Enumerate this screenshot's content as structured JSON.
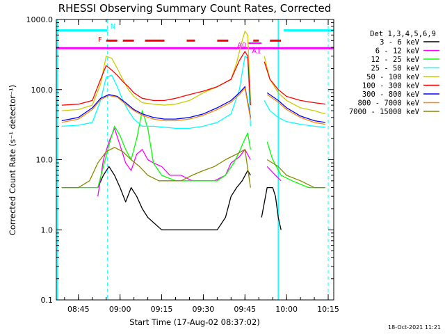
{
  "chart_data": {
    "type": "line",
    "title": "RHESSI Observing Summary Count Rates, Corrected",
    "xlabel": "Start Time (17-Aug-02 08:37:02)",
    "ylabel": "Corrected Count Rate (s⁻¹ detector⁻¹)",
    "ylog": true,
    "xlim": [
      "08:37:02",
      "10:17:00"
    ],
    "ylim": [
      0.1,
      1000.0
    ],
    "x_ticks": [
      "08:45",
      "09:00",
      "09:15",
      "09:30",
      "09:45",
      "10:00",
      "10:15"
    ],
    "y_ticks": [
      "0.1",
      "1.0",
      "10.0",
      "100.0",
      "1000.0"
    ],
    "legend_title": "Det 1,3,4,5,6,9",
    "legend_placement": "right",
    "timestamp": "18-Oct-2021 11:21",
    "series": [
      {
        "name": "3 - 6 keV",
        "color": "#000000",
        "x": [
          "08:52",
          "08:54",
          "08:56",
          "08:58",
          "09:00",
          "09:02",
          "09:04",
          "09:06",
          "09:08",
          "09:10",
          "09:15",
          "09:20",
          "09:25",
          "09:30",
          "09:35",
          "09:38",
          "09:40",
          "09:42",
          "09:44",
          "09:46",
          "09:47",
          "09:50",
          "09:51",
          "09:53",
          "09:55",
          "09:56",
          "09:57",
          "09:58"
        ],
        "y": [
          4,
          6,
          8,
          6,
          4,
          2.5,
          4,
          3,
          2,
          1.5,
          1,
          1,
          1,
          1,
          1,
          1.5,
          3,
          4,
          5,
          7,
          6,
          null,
          1.5,
          4,
          4,
          3,
          1.5,
          1
        ]
      },
      {
        "name": "6 - 12 keV",
        "color": "#ff00ff",
        "x": [
          "08:52",
          "08:54",
          "08:56",
          "08:58",
          "09:00",
          "09:02",
          "09:04",
          "09:06",
          "09:08",
          "09:10",
          "09:12",
          "09:15",
          "09:18",
          "09:22",
          "09:26",
          "09:30",
          "09:34",
          "09:38",
          "09:40",
          "09:43",
          "09:45",
          "09:47",
          "09:51",
          "09:53",
          "09:56",
          "09:58"
        ],
        "y": [
          3,
          10,
          18,
          28,
          16,
          9,
          7,
          12,
          14,
          10,
          9,
          8,
          6,
          6,
          5,
          5,
          5,
          6,
          9,
          11,
          14,
          10,
          null,
          8,
          6,
          5
        ]
      },
      {
        "name": "12 - 25 keV",
        "color": "#00ff00",
        "x": [
          "08:39",
          "08:44",
          "08:49",
          "08:52",
          "08:54",
          "08:56",
          "08:58",
          "09:00",
          "09:02",
          "09:04",
          "09:06",
          "09:08",
          "09:10",
          "09:12",
          "09:15",
          "09:20",
          "09:25",
          "09:30",
          "09:35",
          "09:38",
          "09:41",
          "09:43",
          "09:45",
          "09:46",
          "09:47",
          "09:51",
          "09:53",
          "09:55",
          "09:58",
          "10:02",
          "10:08",
          "10:14"
        ],
        "y": [
          4,
          4,
          4,
          4,
          8,
          16,
          30,
          22,
          14,
          10,
          20,
          50,
          28,
          9,
          6,
          5,
          5,
          5,
          5,
          6,
          9,
          13,
          20,
          24,
          14,
          null,
          18,
          10,
          6,
          5,
          4,
          4
        ]
      },
      {
        "name": "25 - 50 keV",
        "color": "#00ffff",
        "x": [
          "08:39",
          "08:45",
          "08:50",
          "08:53",
          "08:55",
          "08:57",
          "08:59",
          "09:01",
          "09:03",
          "09:05",
          "09:08",
          "09:12",
          "09:16",
          "09:20",
          "09:25",
          "09:30",
          "09:35",
          "09:40",
          "09:43",
          "09:45",
          "09:46",
          "09:47",
          "09:51",
          "09:52",
          "09:54",
          "09:57",
          "10:00",
          "10:05",
          "10:10",
          "10:14"
        ],
        "y": [
          30,
          31,
          34,
          70,
          150,
          160,
          110,
          70,
          50,
          38,
          30,
          30,
          29,
          28,
          28,
          30,
          34,
          45,
          100,
          300,
          280,
          30,
          null,
          70,
          50,
          40,
          35,
          32,
          30,
          29
        ]
      },
      {
        "name": "50 - 100 keV",
        "color": "#cccc00",
        "x": [
          "08:39",
          "08:45",
          "08:50",
          "08:53",
          "08:55",
          "08:57",
          "08:59",
          "09:01",
          "09:03",
          "09:05",
          "09:08",
          "09:12",
          "09:16",
          "09:20",
          "09:25",
          "09:30",
          "09:35",
          "09:40",
          "09:42",
          "09:44",
          "09:45",
          "09:46",
          "09:47",
          "09:51",
          "09:52",
          "09:54",
          "09:57",
          "10:00",
          "10:05",
          "10:10",
          "10:14"
        ],
        "y": [
          50,
          52,
          60,
          120,
          300,
          280,
          200,
          140,
          100,
          80,
          65,
          62,
          60,
          62,
          70,
          90,
          110,
          140,
          240,
          500,
          680,
          600,
          70,
          null,
          300,
          140,
          90,
          70,
          55,
          50,
          45
        ]
      },
      {
        "name": "100 - 300 keV",
        "color": "#ff0000",
        "x": [
          "08:39",
          "08:45",
          "08:50",
          "08:53",
          "08:55",
          "08:57",
          "08:59",
          "09:01",
          "09:03",
          "09:05",
          "09:08",
          "09:12",
          "09:16",
          "09:20",
          "09:25",
          "09:30",
          "09:35",
          "09:40",
          "09:43",
          "09:45",
          "09:46",
          "09:47",
          "09:51",
          "09:52",
          "09:54",
          "09:57",
          "10:00",
          "10:05",
          "10:10",
          "10:14"
        ],
        "y": [
          60,
          62,
          70,
          140,
          220,
          190,
          160,
          130,
          110,
          90,
          75,
          70,
          70,
          75,
          85,
          95,
          110,
          140,
          260,
          350,
          300,
          60,
          null,
          250,
          140,
          100,
          80,
          70,
          65,
          62
        ]
      },
      {
        "name": "300 - 800 keV",
        "color": "#0000ff",
        "x": [
          "08:39",
          "08:45",
          "08:50",
          "08:53",
          "08:56",
          "08:59",
          "09:02",
          "09:05",
          "09:08",
          "09:12",
          "09:16",
          "09:20",
          "09:25",
          "09:30",
          "09:35",
          "09:40",
          "09:43",
          "09:45",
          "09:47",
          "09:51",
          "09:53",
          "09:57",
          "10:00",
          "10:05",
          "10:10",
          "10:14"
        ],
        "y": [
          36,
          40,
          55,
          75,
          85,
          80,
          65,
          52,
          45,
          40,
          38,
          38,
          40,
          45,
          55,
          70,
          90,
          110,
          40,
          null,
          90,
          70,
          55,
          42,
          36,
          34
        ]
      },
      {
        "name": "800 - 7000 keV",
        "color": "#ff8800",
        "x": [
          "08:39",
          "08:45",
          "08:50",
          "08:53",
          "08:56",
          "08:59",
          "09:02",
          "09:05",
          "09:08",
          "09:12",
          "09:16",
          "09:20",
          "09:25",
          "09:30",
          "09:35",
          "09:40",
          "09:43",
          "09:45",
          "09:47",
          "09:51",
          "09:53",
          "09:57",
          "10:00",
          "10:05",
          "10:10",
          "10:14"
        ],
        "y": [
          34,
          38,
          52,
          72,
          82,
          78,
          62,
          50,
          43,
          38,
          36,
          36,
          38,
          43,
          52,
          66,
          85,
          105,
          38,
          null,
          85,
          66,
          52,
          40,
          34,
          32
        ]
      },
      {
        "name": "7000 - 15000 keV",
        "color": "#888800",
        "x": [
          "08:39",
          "08:45",
          "08:49",
          "08:52",
          "08:55",
          "08:58",
          "09:01",
          "09:04",
          "09:07",
          "09:10",
          "09:14",
          "09:18",
          "09:22",
          "09:26",
          "09:30",
          "09:34",
          "09:38",
          "09:42",
          "09:45",
          "09:47",
          "09:51",
          "09:53",
          "09:57",
          "10:00",
          "10:05",
          "10:10",
          "10:14"
        ],
        "y": [
          4,
          4,
          5,
          9,
          13,
          15,
          13,
          10,
          8,
          6,
          5,
          5,
          5,
          6,
          7,
          8,
          10,
          12,
          14,
          4,
          null,
          10,
          8,
          6,
          5,
          4,
          4
        ]
      }
    ],
    "annotations": [
      {
        "label": "N",
        "color": "#00ffff"
      },
      {
        "label": "F",
        "color": "#ff0000"
      },
      {
        "label": "A0",
        "color": "#ff00ff"
      },
      {
        "label": "A1",
        "color": "#ff00ff"
      }
    ],
    "overlays": {
      "night_bars": {
        "color": "#00ffff",
        "level": 700,
        "spans": [
          [
            "08:37:02",
            "08:55:30"
          ],
          [
            "09:59:00",
            "10:17:00"
          ]
        ]
      },
      "night_lines": {
        "color": "#00ffff",
        "solid": [
          "08:37:30",
          "09:57:00"
        ],
        "dashed": [
          "08:55:30",
          "10:15:00"
        ]
      },
      "flare_flag": {
        "color": "#ff0000",
        "level": 500,
        "segments": [
          [
            "08:55",
            "08:59"
          ],
          [
            "09:01",
            "09:05"
          ],
          [
            "09:09",
            "09:16"
          ],
          [
            "09:24",
            "09:27"
          ],
          [
            "09:35",
            "09:39"
          ],
          [
            "09:48",
            "09:50"
          ],
          [
            "09:54",
            "09:58"
          ]
        ]
      },
      "attenuator_line": {
        "color": "#ff00ff",
        "level": 390
      },
      "attenuator_step": {
        "color": "#ff00ff",
        "level": 460,
        "from": "09:46",
        "to": "09:51"
      }
    }
  }
}
